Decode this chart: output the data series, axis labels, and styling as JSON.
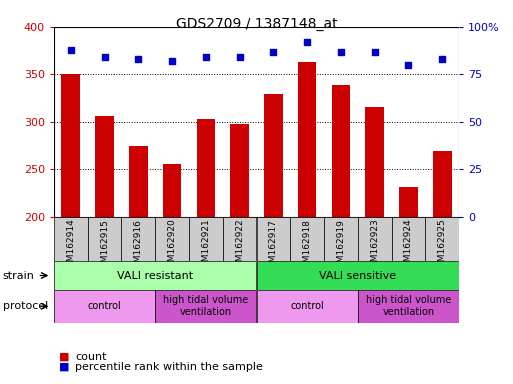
{
  "title": "GDS2709 / 1387148_at",
  "samples": [
    "GSM162914",
    "GSM162915",
    "GSM162916",
    "GSM162920",
    "GSM162921",
    "GSM162922",
    "GSM162917",
    "GSM162918",
    "GSM162919",
    "GSM162923",
    "GSM162924",
    "GSM162925"
  ],
  "counts": [
    350,
    306,
    275,
    256,
    303,
    298,
    329,
    363,
    339,
    316,
    231,
    269
  ],
  "percentile_ranks": [
    88,
    84,
    83,
    82,
    84,
    84,
    87,
    92,
    87,
    87,
    80,
    83
  ],
  "ylim_left": [
    200,
    400
  ],
  "ylim_right": [
    0,
    100
  ],
  "yticks_left": [
    200,
    250,
    300,
    350,
    400
  ],
  "yticks_right": [
    0,
    25,
    50,
    75,
    100
  ],
  "bar_color": "#cc0000",
  "dot_color": "#0000cc",
  "bar_width": 0.55,
  "strain_groups": [
    {
      "label": "VALI resistant",
      "start": 0,
      "end": 6,
      "color": "#aaffaa"
    },
    {
      "label": "VALI sensitive",
      "start": 6,
      "end": 12,
      "color": "#33dd55"
    }
  ],
  "protocol_groups": [
    {
      "label": "control",
      "start": 0,
      "end": 3,
      "color": "#ee99ee"
    },
    {
      "label": "high tidal volume\nventilation",
      "start": 3,
      "end": 6,
      "color": "#cc55cc"
    },
    {
      "label": "control",
      "start": 6,
      "end": 9,
      "color": "#ee99ee"
    },
    {
      "label": "high tidal volume\nventilation",
      "start": 9,
      "end": 12,
      "color": "#cc55cc"
    }
  ],
  "xtick_bg": "#cccccc",
  "plot_border_color": "#000000",
  "grid_color": "#000000"
}
